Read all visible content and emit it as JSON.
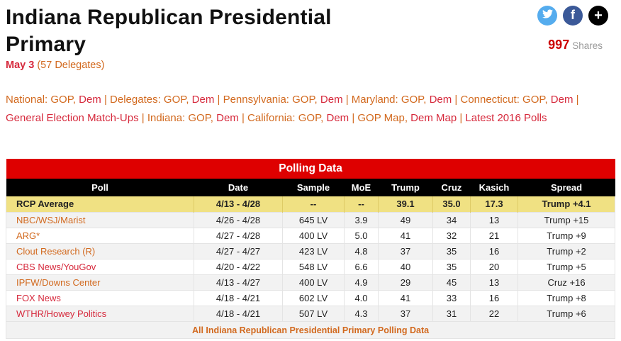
{
  "page": {
    "title": "Indiana Republican Presidential Primary",
    "date": "May 3",
    "delegates": "(57 Delegates)"
  },
  "share": {
    "count": "997",
    "label": "Shares"
  },
  "nav": {
    "line1": [
      {
        "text": "National: GOP",
        "color": "orange",
        "link": true
      },
      {
        "text": ", ",
        "color": "orange",
        "link": false
      },
      {
        "text": "Dem",
        "color": "red",
        "link": true
      },
      {
        "text": " | ",
        "color": "orange",
        "link": false
      },
      {
        "text": "Delegates: GOP",
        "color": "orange",
        "link": true
      },
      {
        "text": ", ",
        "color": "orange",
        "link": false
      },
      {
        "text": "Dem",
        "color": "red",
        "link": true
      },
      {
        "text": " | ",
        "color": "orange",
        "link": false
      },
      {
        "text": "Pennsylvania: GOP",
        "color": "orange",
        "link": true
      },
      {
        "text": ", ",
        "color": "orange",
        "link": false
      },
      {
        "text": "Dem",
        "color": "red",
        "link": true
      },
      {
        "text": " | ",
        "color": "orange",
        "link": false
      },
      {
        "text": "Maryland: GOP",
        "color": "orange",
        "link": true
      },
      {
        "text": ", ",
        "color": "orange",
        "link": false
      },
      {
        "text": "Dem",
        "color": "red",
        "link": true
      },
      {
        "text": " | ",
        "color": "orange",
        "link": false
      },
      {
        "text": "Connecticut: GOP",
        "color": "orange",
        "link": true
      },
      {
        "text": ", ",
        "color": "orange",
        "link": false
      },
      {
        "text": "Dem",
        "color": "red",
        "link": true
      },
      {
        "text": " |",
        "color": "orange",
        "link": false
      }
    ],
    "line2": [
      {
        "text": "General Election Match-Ups",
        "color": "red",
        "link": true
      },
      {
        "text": " | ",
        "color": "orange",
        "link": false
      },
      {
        "text": "Indiana: GOP",
        "color": "orange",
        "link": true
      },
      {
        "text": ", ",
        "color": "orange",
        "link": false
      },
      {
        "text": "Dem",
        "color": "red",
        "link": true
      },
      {
        "text": " | ",
        "color": "orange",
        "link": false
      },
      {
        "text": "California: GOP",
        "color": "orange",
        "link": true
      },
      {
        "text": ", ",
        "color": "orange",
        "link": false
      },
      {
        "text": "Dem",
        "color": "red",
        "link": true
      },
      {
        "text": " | ",
        "color": "orange",
        "link": false
      },
      {
        "text": "GOP Map",
        "color": "orange",
        "link": true
      },
      {
        "text": ", ",
        "color": "orange",
        "link": false
      },
      {
        "text": "Dem Map",
        "color": "red",
        "link": true
      },
      {
        "text": " | ",
        "color": "orange",
        "link": false
      },
      {
        "text": "Latest 2016 Polls",
        "color": "red",
        "link": true
      }
    ]
  },
  "polling_table": {
    "banner": "Polling Data",
    "columns": [
      "Poll",
      "Date",
      "Sample",
      "MoE",
      "Trump",
      "Cruz",
      "Kasich",
      "Spread"
    ],
    "rcp_average": {
      "poll": "RCP Average",
      "date": "4/13 - 4/28",
      "sample": "--",
      "moe": "--",
      "trump": "39.1",
      "cruz": "35.0",
      "kasich": "17.3",
      "spread": "Trump +4.1"
    },
    "rows": [
      {
        "poll": "NBC/WSJ/Marist",
        "link_color": "orange",
        "date": "4/26 - 4/28",
        "sample": "645 LV",
        "moe": "3.9",
        "trump": "49",
        "cruz": "34",
        "kasich": "13",
        "spread": "Trump +15"
      },
      {
        "poll": "ARG*",
        "link_color": "orange",
        "date": "4/27 - 4/28",
        "sample": "400 LV",
        "moe": "5.0",
        "trump": "41",
        "cruz": "32",
        "kasich": "21",
        "spread": "Trump +9"
      },
      {
        "poll": "Clout Research (R)",
        "link_color": "orange",
        "date": "4/27 - 4/27",
        "sample": "423 LV",
        "moe": "4.8",
        "trump": "37",
        "cruz": "35",
        "kasich": "16",
        "spread": "Trump +2"
      },
      {
        "poll": "CBS News/YouGov",
        "link_color": "red",
        "date": "4/20 - 4/22",
        "sample": "548 LV",
        "moe": "6.6",
        "trump": "40",
        "cruz": "35",
        "kasich": "20",
        "spread": "Trump +5"
      },
      {
        "poll": "IPFW/Downs Center",
        "link_color": "orange",
        "date": "4/13 - 4/27",
        "sample": "400 LV",
        "moe": "4.9",
        "trump": "29",
        "cruz": "45",
        "kasich": "13",
        "spread": "Cruz +16"
      },
      {
        "poll": "FOX News",
        "link_color": "red",
        "date": "4/18 - 4/21",
        "sample": "602 LV",
        "moe": "4.0",
        "trump": "41",
        "cruz": "33",
        "kasich": "16",
        "spread": "Trump +8"
      },
      {
        "poll": "WTHR/Howey Politics",
        "link_color": "red",
        "date": "4/18 - 4/21",
        "sample": "507 LV",
        "moe": "4.3",
        "trump": "37",
        "cruz": "31",
        "kasich": "22",
        "spread": "Trump +6"
      }
    ],
    "footer_link": "All Indiana Republican Presidential Primary Polling Data"
  },
  "colors": {
    "accent_red": "#d6293c",
    "accent_orange": "#d2691e",
    "banner_red": "#de0000",
    "rcp_row_yellow": "#f0e183",
    "twitter_blue": "#55acee",
    "facebook_blue": "#3b5998",
    "shares_red": "#cc0000",
    "shade_gray": "#f2f2f2"
  }
}
